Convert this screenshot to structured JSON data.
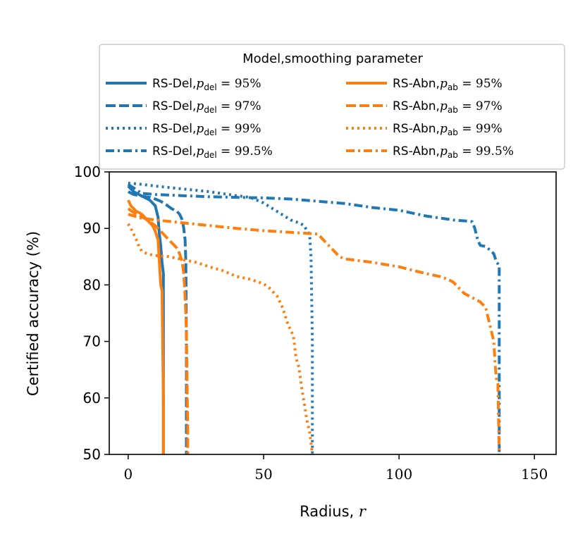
{
  "chart_data": {
    "type": "line",
    "title": "",
    "xlabel": "Radius, r",
    "ylabel": "Certified accuracy (%)",
    "xlim": [
      -7,
      158
    ],
    "ylim": [
      50,
      100
    ],
    "xticks": [
      0,
      50,
      100,
      150
    ],
    "yticks": [
      50,
      60,
      70,
      80,
      90,
      100
    ],
    "grid": false,
    "legend": {
      "title": "Model,smoothing parameter",
      "placement": "top-center",
      "columns": 2
    },
    "colors": {
      "RS-Del": "#1f77b4",
      "RS-Abn": "#ff7f0e"
    },
    "series": [
      {
        "name": "RS-Del",
        "param_symbol": "del",
        "param": "95%",
        "style": "solid",
        "color": "#1f77b4",
        "x": [
          0,
          1,
          2,
          4,
          6,
          8,
          10,
          11,
          11.5,
          12,
          12.5,
          13,
          13,
          13
        ],
        "y": [
          97.5,
          97,
          96.5,
          96,
          95.5,
          95,
          94,
          92,
          89,
          87,
          84,
          82,
          80,
          50
        ]
      },
      {
        "name": "RS-Del",
        "param_symbol": "del",
        "param": "97%",
        "style": "dashed",
        "color": "#1f77b4",
        "x": [
          0,
          2,
          5,
          8,
          10,
          12,
          14,
          16,
          18,
          19,
          20,
          20.5,
          21,
          21.3,
          21.5,
          21.5
        ],
        "y": [
          96.5,
          96,
          95.7,
          95.5,
          95.2,
          94.8,
          94.2,
          93.5,
          93,
          92.5,
          91.5,
          90,
          88,
          84,
          70,
          50
        ]
      },
      {
        "name": "RS-Del",
        "param_symbol": "del",
        "param": "99%",
        "style": "dotted",
        "color": "#1f77b4",
        "x": [
          0,
          5,
          10,
          20,
          30,
          40,
          45,
          50,
          55,
          60,
          63,
          65,
          66,
          67,
          67.5,
          68,
          68,
          68
        ],
        "y": [
          98,
          97.8,
          97.5,
          97,
          96.5,
          95.8,
          95.5,
          94.5,
          93,
          91.5,
          91,
          90.5,
          89.5,
          89,
          85,
          70,
          60,
          50
        ]
      },
      {
        "name": "RS-Del",
        "param_symbol": "del",
        "param": "99.5%",
        "style": "dashdot",
        "color": "#1f77b4",
        "x": [
          0,
          5,
          10,
          20,
          30,
          40,
          50,
          60,
          70,
          80,
          90,
          100,
          110,
          120,
          125,
          127,
          128,
          129,
          130,
          132,
          134,
          135,
          136,
          137,
          137,
          137
        ],
        "y": [
          97.8,
          96.2,
          96,
          95.8,
          95.6,
          95.5,
          95.4,
          95.2,
          94.8,
          94.4,
          93.7,
          93.2,
          92.2,
          91.5,
          91.3,
          91.2,
          90,
          88,
          87,
          86.8,
          86,
          85.5,
          84,
          83.5,
          70,
          50
        ]
      },
      {
        "name": "RS-Abn",
        "param_symbol": "ab",
        "param": "95%",
        "style": "solid",
        "color": "#ff7f0e",
        "x": [
          0,
          1,
          2,
          3,
          4,
          5,
          6,
          7,
          8,
          9,
          10,
          11,
          11.5,
          12,
          12.5,
          13,
          13
        ],
        "y": [
          95,
          94,
          93.5,
          93,
          92.8,
          92.5,
          92,
          91.5,
          91,
          90.5,
          89.5,
          88,
          84,
          80,
          79,
          60,
          50
        ]
      },
      {
        "name": "RS-Abn",
        "param_symbol": "ab",
        "param": "97%",
        "style": "dashed",
        "color": "#ff7f0e",
        "x": [
          0,
          2,
          4,
          6,
          8,
          10,
          12,
          14,
          16,
          18,
          19,
          20,
          20.5,
          21,
          21.5,
          21.8,
          22,
          22
        ],
        "y": [
          93.5,
          92.8,
          92.3,
          91.8,
          91.2,
          90.5,
          89.5,
          88.5,
          87.5,
          86.5,
          85.5,
          84,
          82,
          78,
          72,
          60,
          55,
          50
        ]
      },
      {
        "name": "RS-Abn",
        "param_symbol": "ab",
        "param": "99%",
        "style": "dotted",
        "color": "#ff7f0e",
        "x": [
          0,
          1,
          2,
          3,
          4,
          5,
          6,
          8,
          10,
          15,
          20,
          25,
          30,
          35,
          40,
          45,
          50,
          52,
          55,
          57,
          59,
          60,
          61,
          62,
          63,
          64,
          65,
          66,
          67,
          67.5,
          68
        ],
        "y": [
          90.8,
          90,
          89,
          88,
          86.8,
          86,
          85.7,
          85.4,
          85.2,
          85,
          84.5,
          84,
          83.2,
          82.5,
          81.5,
          81,
          80.2,
          79.5,
          78,
          76,
          73,
          72,
          71,
          67,
          65.5,
          62,
          59,
          56,
          54,
          52,
          50
        ]
      },
      {
        "name": "RS-Abn",
        "param_symbol": "ab",
        "param": "99.5%",
        "style": "dashdot",
        "color": "#ff7f0e",
        "x": [
          0,
          5,
          10,
          20,
          30,
          40,
          50,
          60,
          70,
          72,
          74,
          76,
          78,
          80,
          90,
          100,
          110,
          115,
          118,
          120,
          122,
          124,
          126,
          128,
          130,
          132,
          133,
          134,
          135,
          135.5,
          136,
          136.5,
          137
        ],
        "y": [
          92.5,
          91.8,
          91.5,
          91,
          90.5,
          90,
          89.6,
          89.3,
          89,
          88,
          87,
          86,
          85,
          84.6,
          84,
          83.2,
          82,
          81.5,
          81,
          80.5,
          79.5,
          78.5,
          78,
          77.5,
          77,
          76,
          74,
          72,
          70,
          66,
          63,
          62.5,
          50
        ]
      }
    ]
  }
}
